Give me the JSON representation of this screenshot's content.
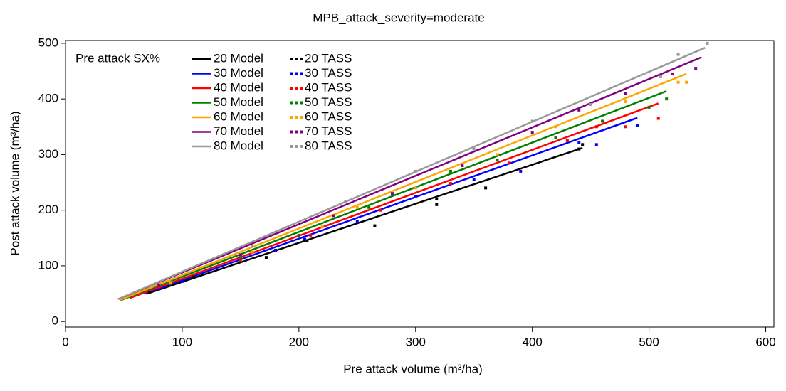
{
  "chart_data": {
    "type": "scatter",
    "title": "MPB_attack_severity=moderate",
    "x_label": "Pre attack volume (m³/ha)",
    "y_label": "Post attack volume (m³/ha)",
    "legend_title": "Pre attack SX%",
    "legend": "top-left",
    "xlim": [
      0,
      607
    ],
    "ylim": [
      -10,
      505
    ],
    "xticks": [
      0,
      100,
      200,
      300,
      400,
      500,
      600
    ],
    "yticks": [
      0,
      100,
      200,
      300,
      400,
      500
    ],
    "series": [
      {
        "name": "20 Model",
        "type": "line",
        "color": "#000000",
        "x": [
          70,
          443
        ],
        "values": [
          50,
          312
        ]
      },
      {
        "name": "30 Model",
        "type": "line",
        "color": "#0000ff",
        "x": [
          68,
          490
        ],
        "values": [
          50,
          366
        ]
      },
      {
        "name": "40 Model",
        "type": "line",
        "color": "#ff0000",
        "x": [
          55,
          508
        ],
        "values": [
          42,
          392
        ]
      },
      {
        "name": "50 Model",
        "type": "line",
        "color": "#008000",
        "x": [
          47,
          515
        ],
        "values": [
          38,
          414
        ]
      },
      {
        "name": "60 Model",
        "type": "line",
        "color": "#ffa500",
        "x": [
          47,
          532
        ],
        "values": [
          39,
          445
        ]
      },
      {
        "name": "70 Model",
        "type": "line",
        "color": "#800080",
        "x": [
          45,
          545
        ],
        "values": [
          40,
          475
        ]
      },
      {
        "name": "80 Model",
        "type": "line",
        "color": "#999999",
        "x": [
          45,
          548
        ],
        "values": [
          40,
          492
        ]
      },
      {
        "name": "20 TASS",
        "type": "scatter",
        "color": "#000000",
        "x": [
          72,
          110,
          172,
          207,
          265,
          318,
          318,
          360,
          440,
          443
        ],
        "values": [
          52,
          80,
          115,
          145,
          172,
          210,
          220,
          240,
          310,
          318
        ]
      },
      {
        "name": "30 TASS",
        "type": "scatter",
        "color": "#0000ff",
        "x": [
          100,
          180,
          205,
          250,
          300,
          350,
          390,
          440,
          455,
          490
        ],
        "values": [
          72,
          128,
          148,
          180,
          225,
          255,
          270,
          322,
          318,
          352
        ]
      },
      {
        "name": "40 TASS",
        "type": "scatter",
        "color": "#ff0000",
        "x": [
          80,
          150,
          210,
          270,
          330,
          380,
          430,
          455,
          480,
          508
        ],
        "values": [
          62,
          110,
          155,
          200,
          248,
          285,
          325,
          350,
          350,
          365
        ]
      },
      {
        "name": "50 TASS",
        "type": "scatter",
        "color": "#008000",
        "x": [
          90,
          150,
          200,
          260,
          330,
          370,
          420,
          460,
          500,
          515
        ],
        "values": [
          68,
          115,
          155,
          205,
          270,
          290,
          330,
          360,
          385,
          400
        ]
      },
      {
        "name": "60 TASS",
        "type": "scatter",
        "color": "#ffa500",
        "x": [
          90,
          160,
          220,
          250,
          300,
          370,
          420,
          480,
          525,
          532
        ],
        "values": [
          70,
          125,
          170,
          205,
          240,
          300,
          350,
          395,
          430,
          430
        ]
      },
      {
        "name": "70 TASS",
        "type": "scatter",
        "color": "#800080",
        "x": [
          80,
          150,
          230,
          280,
          340,
          400,
          440,
          480,
          520,
          540
        ],
        "values": [
          65,
          120,
          190,
          230,
          280,
          340,
          380,
          410,
          445,
          455
        ]
      },
      {
        "name": "80 TASS",
        "type": "scatter",
        "color": "#999999",
        "x": [
          75,
          160,
          240,
          300,
          350,
          400,
          450,
          510,
          525,
          550
        ],
        "values": [
          65,
          135,
          215,
          270,
          310,
          360,
          390,
          440,
          480,
          500
        ]
      }
    ]
  }
}
